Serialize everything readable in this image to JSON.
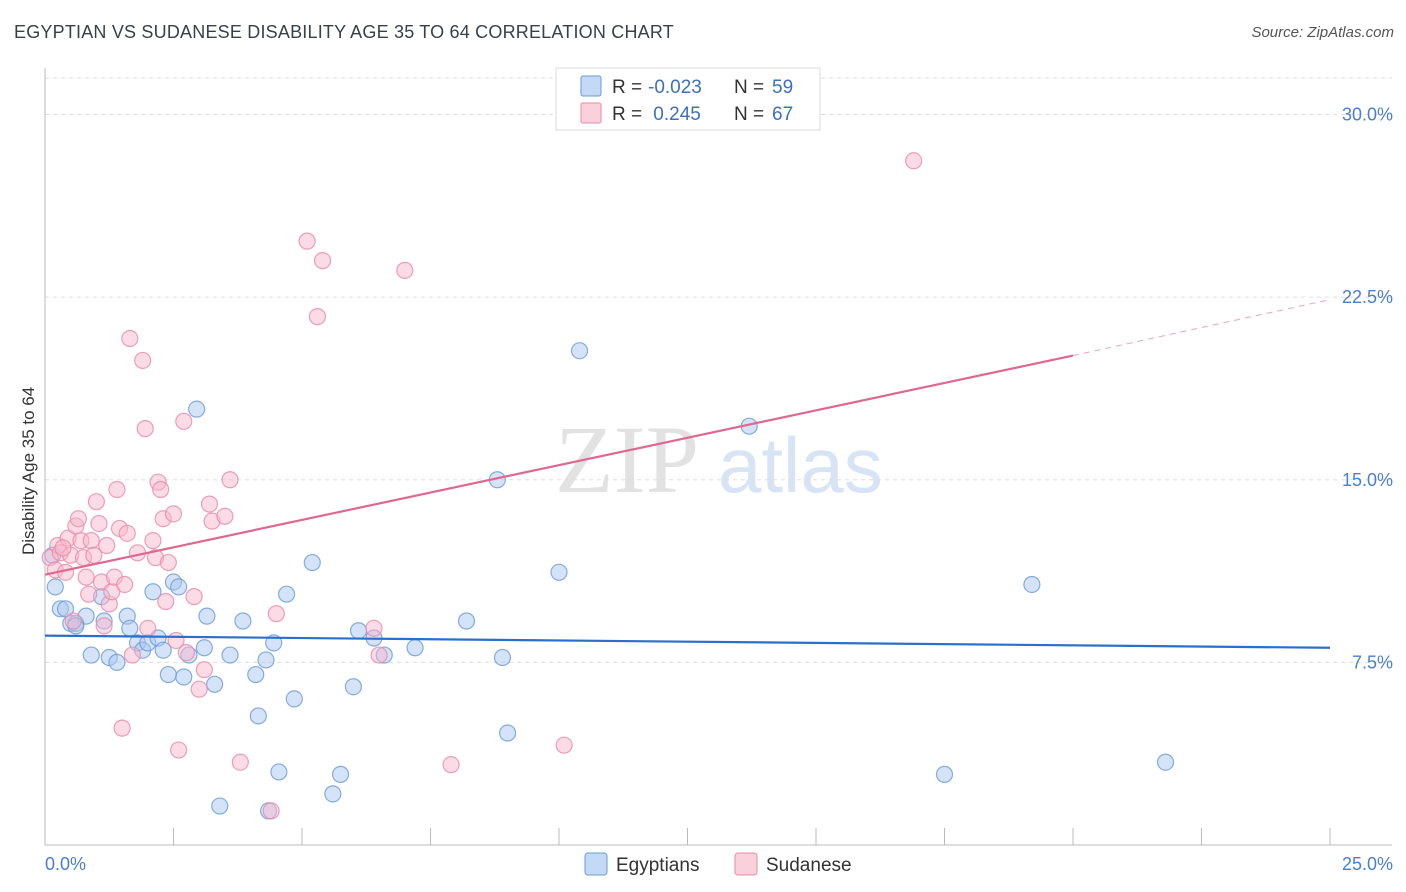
{
  "header": {
    "title": "EGYPTIAN VS SUDANESE DISABILITY AGE 35 TO 64 CORRELATION CHART",
    "source": "Source: ZipAtlas.com"
  },
  "watermark": {
    "zip": "ZIP",
    "atlas": "atlas"
  },
  "legend": {
    "rows": [
      {
        "r_label": "R =",
        "r_value": "-0.023",
        "n_label": "N =",
        "n_value": "59"
      },
      {
        "r_label": "R =",
        "r_value": " 0.245",
        "n_label": "N =",
        "n_value": "67"
      }
    ]
  },
  "bottom_legend": [
    "Egyptians",
    "Sudanese"
  ],
  "colors": {
    "egyptians_fill": "#aac8f0",
    "egyptians_stroke": "#6a9ad8",
    "egyptians_line": "#2a6fcc",
    "sudanese_fill": "#f8b8cc",
    "sudanese_stroke": "#e88aa8",
    "sudanese_line": "#e06890",
    "grid": "#dddddd",
    "tick_text": "#4a7fd0"
  },
  "chart_data": {
    "type": "scatter",
    "title": "EGYPTIAN VS SUDANESE DISABILITY AGE 35 TO 64 CORRELATION CHART",
    "xlabel": "",
    "ylabel": "Disability Age 35 to 64",
    "xlim": [
      0,
      25
    ],
    "ylim": [
      0,
      31.5
    ],
    "x_tick_labels": [
      "0.0%",
      "25.0%"
    ],
    "y_ticks": [
      7.5,
      15.0,
      22.5,
      30.0
    ],
    "y_tick_labels": [
      "7.5%",
      "15.0%",
      "22.5%",
      "30.0%"
    ],
    "grid": true,
    "legend_position": "top-center",
    "series": [
      {
        "name": "Egyptians",
        "r": -0.023,
        "n": 59,
        "trend": {
          "x0": 0,
          "y0": 8.6,
          "x1": 25,
          "y1": 8.1,
          "dashed_after": null
        },
        "points": [
          [
            0.15,
            11.9
          ],
          [
            0.2,
            10.6
          ],
          [
            0.3,
            9.7
          ],
          [
            0.4,
            9.7
          ],
          [
            0.5,
            9.1
          ],
          [
            0.6,
            9.1
          ],
          [
            0.8,
            9.4
          ],
          [
            0.9,
            7.8
          ],
          [
            1.1,
            10.2
          ],
          [
            1.15,
            9.2
          ],
          [
            1.25,
            7.7
          ],
          [
            1.4,
            7.5
          ],
          [
            1.6,
            9.4
          ],
          [
            1.65,
            8.9
          ],
          [
            1.8,
            8.3
          ],
          [
            1.9,
            8.0
          ],
          [
            2.0,
            8.3
          ],
          [
            2.1,
            10.4
          ],
          [
            2.2,
            8.5
          ],
          [
            2.3,
            8.0
          ],
          [
            2.4,
            7.0
          ],
          [
            2.5,
            10.8
          ],
          [
            2.6,
            10.6
          ],
          [
            2.7,
            6.9
          ],
          [
            2.8,
            7.8
          ],
          [
            2.95,
            17.9
          ],
          [
            3.1,
            8.1
          ],
          [
            3.15,
            9.4
          ],
          [
            3.3,
            6.6
          ],
          [
            3.4,
            1.6
          ],
          [
            3.6,
            7.8
          ],
          [
            3.85,
            9.2
          ],
          [
            4.1,
            7.0
          ],
          [
            4.15,
            5.3
          ],
          [
            4.3,
            7.6
          ],
          [
            4.35,
            1.4
          ],
          [
            4.45,
            8.3
          ],
          [
            4.55,
            3.0
          ],
          [
            4.7,
            10.3
          ],
          [
            4.85,
            6.0
          ],
          [
            5.2,
            11.6
          ],
          [
            5.6,
            2.1
          ],
          [
            5.75,
            2.9
          ],
          [
            6.0,
            6.5
          ],
          [
            6.1,
            8.8
          ],
          [
            6.4,
            8.5
          ],
          [
            6.6,
            7.8
          ],
          [
            7.2,
            8.1
          ],
          [
            8.2,
            9.2
          ],
          [
            8.8,
            15.0
          ],
          [
            8.9,
            7.7
          ],
          [
            9.0,
            4.6
          ],
          [
            10.0,
            11.2
          ],
          [
            10.4,
            20.3
          ],
          [
            13.7,
            17.2
          ],
          [
            17.5,
            2.9
          ],
          [
            19.2,
            10.7
          ],
          [
            21.8,
            3.4
          ],
          [
            0.6,
            9.0
          ]
        ]
      },
      {
        "name": "Sudanese",
        "r": 0.245,
        "n": 67,
        "trend": {
          "x0": 0,
          "y0": 11.1,
          "x1": 20,
          "y1": 20.1,
          "dashed_to_x": 25,
          "dashed_to_y": 22.4
        },
        "points": [
          [
            0.1,
            11.8
          ],
          [
            0.2,
            11.3
          ],
          [
            0.25,
            12.3
          ],
          [
            0.3,
            12.0
          ],
          [
            0.4,
            11.2
          ],
          [
            0.45,
            12.6
          ],
          [
            0.5,
            11.9
          ],
          [
            0.55,
            9.2
          ],
          [
            0.6,
            13.1
          ],
          [
            0.65,
            13.4
          ],
          [
            0.7,
            12.5
          ],
          [
            0.75,
            11.8
          ],
          [
            0.8,
            11.0
          ],
          [
            0.85,
            10.3
          ],
          [
            0.9,
            12.5
          ],
          [
            0.95,
            11.9
          ],
          [
            1.0,
            14.1
          ],
          [
            1.05,
            13.2
          ],
          [
            1.1,
            10.8
          ],
          [
            1.2,
            12.3
          ],
          [
            1.25,
            9.9
          ],
          [
            1.3,
            10.4
          ],
          [
            1.35,
            11.0
          ],
          [
            1.4,
            14.6
          ],
          [
            1.45,
            13.0
          ],
          [
            1.5,
            4.8
          ],
          [
            1.55,
            10.7
          ],
          [
            1.6,
            12.8
          ],
          [
            1.65,
            20.8
          ],
          [
            1.7,
            7.8
          ],
          [
            1.8,
            12.0
          ],
          [
            1.9,
            19.9
          ],
          [
            1.95,
            17.1
          ],
          [
            2.0,
            8.9
          ],
          [
            2.1,
            12.5
          ],
          [
            2.15,
            11.8
          ],
          [
            2.2,
            14.9
          ],
          [
            2.25,
            14.6
          ],
          [
            2.3,
            13.4
          ],
          [
            2.35,
            10.0
          ],
          [
            2.4,
            11.6
          ],
          [
            2.5,
            13.6
          ],
          [
            2.55,
            8.4
          ],
          [
            2.6,
            3.9
          ],
          [
            2.7,
            17.4
          ],
          [
            2.75,
            7.9
          ],
          [
            2.9,
            10.2
          ],
          [
            3.0,
            6.4
          ],
          [
            3.1,
            7.2
          ],
          [
            3.2,
            14.0
          ],
          [
            3.25,
            13.3
          ],
          [
            3.5,
            13.5
          ],
          [
            3.6,
            15.0
          ],
          [
            3.8,
            3.4
          ],
          [
            4.4,
            1.4
          ],
          [
            4.5,
            9.5
          ],
          [
            5.1,
            24.8
          ],
          [
            5.3,
            21.7
          ],
          [
            5.4,
            24.0
          ],
          [
            6.4,
            8.9
          ],
          [
            6.5,
            7.8
          ],
          [
            7.0,
            23.6
          ],
          [
            7.9,
            3.3
          ],
          [
            10.1,
            4.1
          ],
          [
            16.9,
            28.1
          ],
          [
            0.35,
            12.2
          ],
          [
            1.15,
            9.0
          ]
        ]
      }
    ]
  }
}
